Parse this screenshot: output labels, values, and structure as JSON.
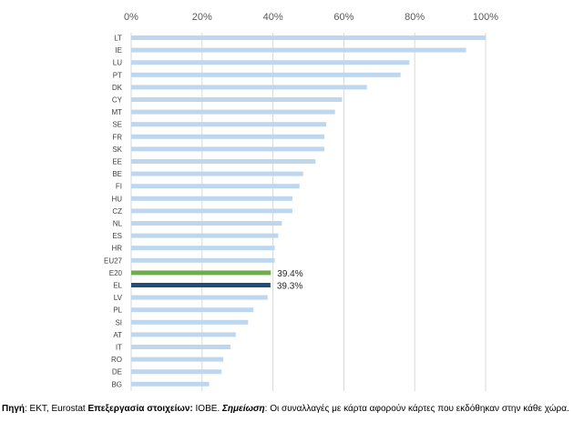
{
  "chart_data": {
    "type": "bar",
    "orientation": "horizontal",
    "x_ticks": [
      "0%",
      "20%",
      "40%",
      "60%",
      "80%",
      "100%"
    ],
    "xlim": [
      0,
      100
    ],
    "grid": true,
    "categories": [
      "LT",
      "IE",
      "LU",
      "PT",
      "DK",
      "CY",
      "MT",
      "SE",
      "FR",
      "SK",
      "EE",
      "BE",
      "FI",
      "HU",
      "CZ",
      "NL",
      "ES",
      "HR",
      "EU27",
      "E20",
      "EL",
      "LV",
      "PL",
      "SI",
      "AT",
      "IT",
      "RO",
      "DE",
      "BG"
    ],
    "values": [
      100,
      94.5,
      78.5,
      76,
      66.5,
      59.5,
      57.5,
      55,
      54.5,
      54.5,
      52,
      48.5,
      47.5,
      45.5,
      45.5,
      42.5,
      41.5,
      40.5,
      40.5,
      39.4,
      39.3,
      38.5,
      34.5,
      33,
      29.5,
      28,
      26,
      25.5,
      22
    ],
    "data_labels": {
      "E20": "39.4%",
      "EL": "39.3%"
    },
    "colors": {
      "default": "#bdd7ee",
      "E20": "#70ad47",
      "EL": "#1f4e79",
      "grid": "#d9d9d9"
    }
  },
  "footnote": {
    "source_label": "Πηγή",
    "source_text": ": ΕΚΤ, Eurostat ",
    "processing_label": "Επεξεργασία στοιχείων:",
    "processing_text": " ΙΟΒΕ. ",
    "note_label": "Σημείωση",
    "note_text": ": Οι συναλλαγές με κάρτα αφορούν κάρτες που εκδόθηκαν στην κάθε χώρα."
  }
}
